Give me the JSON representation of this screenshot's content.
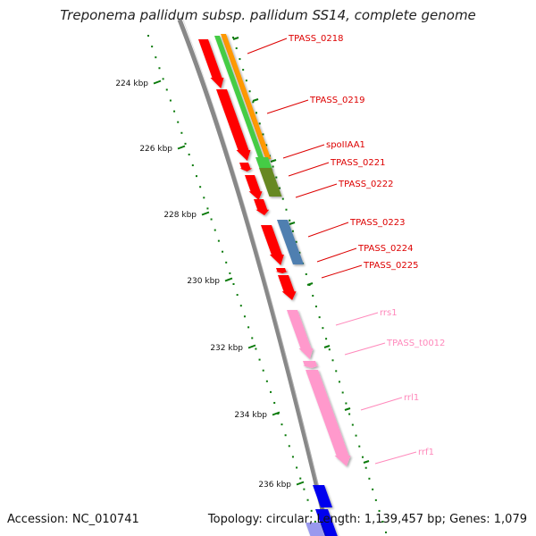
{
  "title": "Treponema pallidum subsp. pallidum SS14, complete genome",
  "footer": {
    "accession": "Accession: NC_010741",
    "topology": "Topology: circular; Length: 1,139,457 bp; Genes: 1,079"
  },
  "colors": {
    "backbone": "#888888",
    "tick": "#0a7a0a",
    "cds": "#ff0000",
    "label_red": "#dd0000",
    "label_pink": "#ff88bb",
    "orange": "#ff9900",
    "green": "#44cc44",
    "olive": "#668822",
    "steelblue": "#4f7fb0",
    "pink": "#ff99cc",
    "blue": "#0000ee"
  },
  "axis": {
    "ticks": [
      "224 kbp",
      "226 kbp",
      "228 kbp",
      "230 kbp",
      "232 kbp",
      "234 kbp",
      "236 kbp"
    ]
  },
  "features": [
    {
      "label": "TPASS_0218",
      "kind": "cds"
    },
    {
      "label": "TPASS_0219",
      "kind": "cds"
    },
    {
      "label": "spoIIAA1",
      "kind": "cds"
    },
    {
      "label": "TPASS_0221",
      "kind": "cds"
    },
    {
      "label": "TPASS_0222",
      "kind": "cds"
    },
    {
      "label": "TPASS_0223",
      "kind": "cds"
    },
    {
      "label": "TPASS_0224",
      "kind": "cds"
    },
    {
      "label": "TPASS_0225",
      "kind": "cds"
    },
    {
      "label": "rrs1",
      "kind": "rna"
    },
    {
      "label": "TPASS_t0012",
      "kind": "rna"
    },
    {
      "label": "rrl1",
      "kind": "rna"
    },
    {
      "label": "rrf1",
      "kind": "rna"
    }
  ]
}
